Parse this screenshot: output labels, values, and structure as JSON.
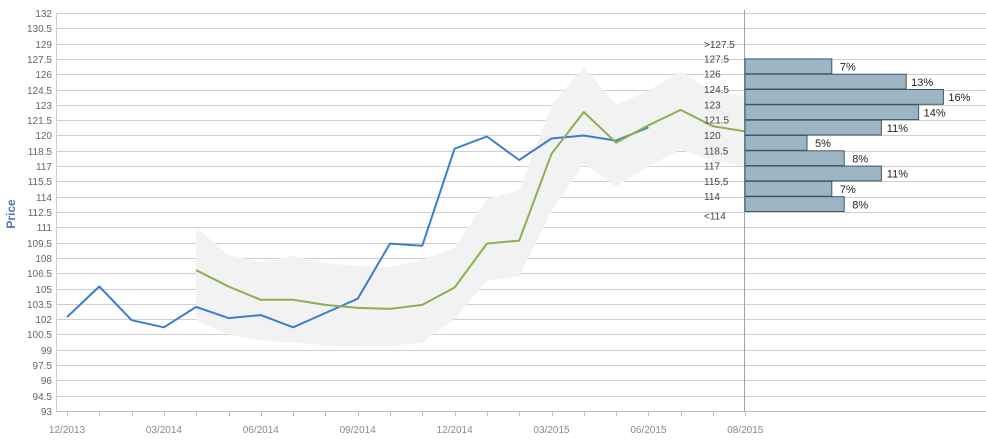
{
  "chart_data": {
    "type": "line",
    "ylabel": "Price",
    "ylim": [
      93,
      132
    ],
    "yticks": [
      93,
      94.5,
      96,
      97.5,
      99,
      100.5,
      102,
      103.5,
      105,
      106.5,
      108,
      109.5,
      111,
      112.5,
      114,
      115.5,
      117,
      118.5,
      120,
      121.5,
      123,
      124.5,
      126,
      127.5,
      129,
      130.5,
      132
    ],
    "x_tick_labels": [
      "12/2013",
      "03/2014",
      "06/2014",
      "09/2014",
      "12/2014",
      "03/2015",
      "06/2015",
      "08/2015"
    ],
    "grid": true,
    "series": [
      {
        "role": "actual",
        "color": "#3a7fcf",
        "x": [
          0,
          1,
          2,
          3,
          4,
          5,
          6,
          7,
          8,
          9,
          10,
          11,
          12,
          13,
          14,
          15,
          16,
          17,
          18
        ],
        "values": [
          102.2,
          105.2,
          101.9,
          101.2,
          103.2,
          102.1,
          102.4,
          101.2,
          102.6,
          104.0,
          109.4,
          109.2,
          118.7,
          119.9,
          117.6,
          119.7,
          120.0,
          119.5,
          120.8
        ]
      },
      {
        "role": "forecast",
        "color": "#8caf4f",
        "x": [
          4,
          5,
          6,
          7,
          8,
          9,
          10,
          11,
          12,
          13,
          14,
          15,
          16,
          17,
          18,
          19,
          20,
          21
        ],
        "values": [
          106.8,
          105.2,
          103.9,
          103.9,
          103.4,
          103.1,
          103.0,
          103.4,
          105.1,
          109.4,
          109.7,
          118.2,
          122.3,
          119.3,
          121.0,
          122.5,
          120.9,
          120.4
        ]
      },
      {
        "role": "forecast-range",
        "color": "#f2f2f2",
        "x": [
          4,
          5,
          6,
          7,
          8,
          9,
          10,
          11,
          12,
          13,
          14,
          15,
          16,
          17,
          18,
          19,
          20,
          21
        ],
        "low": [
          101.9,
          100.5,
          99.9,
          99.7,
          99.4,
          99.3,
          99.3,
          99.7,
          102.0,
          105.8,
          106.2,
          112.6,
          117.2,
          115.0,
          117.0,
          118.6,
          117.5,
          117.0
        ],
        "high": [
          111.0,
          108.3,
          107.6,
          108.2,
          107.5,
          107.2,
          107.1,
          107.8,
          109.0,
          113.8,
          114.6,
          123.0,
          126.7,
          123.0,
          124.4,
          126.3,
          124.3,
          123.9
        ]
      }
    ],
    "distribution": {
      "bar_color": "#9db5c3",
      "label_bounds": [
        ">127.5",
        "127.5",
        "126",
        "124.5",
        "123",
        "121.5",
        "120",
        "118.5",
        "117",
        "115.5",
        "114",
        "<114"
      ],
      "bins": [
        {
          "pct_value": 7,
          "pct": "7%"
        },
        {
          "pct_value": 13,
          "pct": "13%"
        },
        {
          "pct_value": 16,
          "pct": "16%"
        },
        {
          "pct_value": 14,
          "pct": "14%"
        },
        {
          "pct_value": 11,
          "pct": "11%"
        },
        {
          "pct_value": 5,
          "pct": "5%"
        },
        {
          "pct_value": 8,
          "pct": "8%"
        },
        {
          "pct_value": 11,
          "pct": "11%"
        },
        {
          "pct_value": 7,
          "pct": "7%"
        },
        {
          "pct_value": 8,
          "pct": "8%"
        }
      ]
    }
  }
}
